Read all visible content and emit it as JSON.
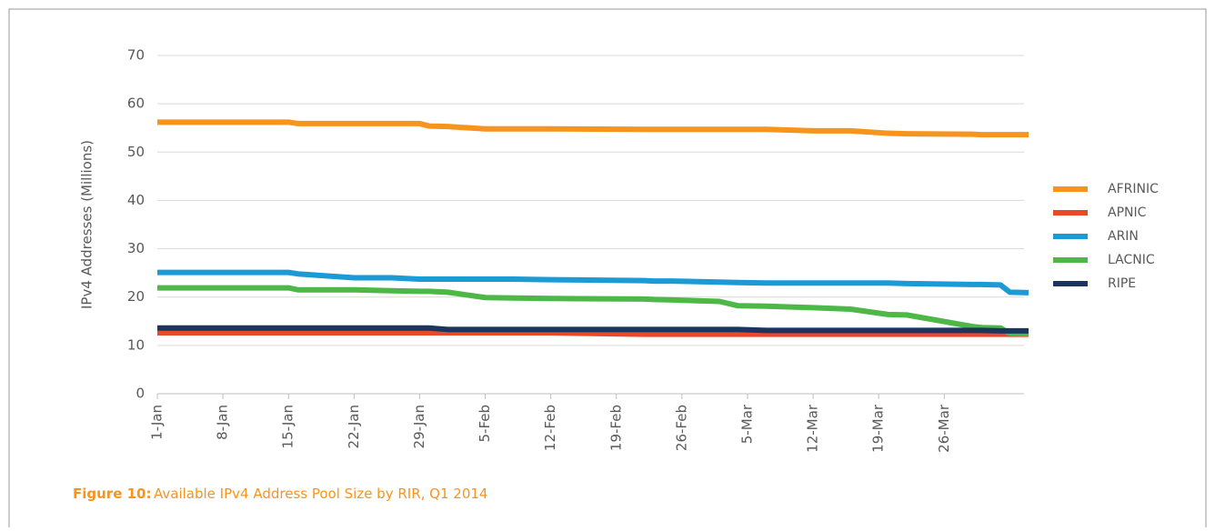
{
  "chart_data": {
    "type": "line",
    "y_label": "IPv4 Addresses (Millions)",
    "caption_label": "Figure 10:",
    "caption": "Available IPv4 Address Pool Size by RIR, Q1 2014",
    "x": [
      0,
      14,
      15,
      21,
      25,
      28,
      29,
      31,
      35,
      38,
      42,
      52,
      53,
      55,
      60,
      62,
      65,
      70,
      74,
      78,
      80,
      87,
      88,
      90,
      91,
      93
    ],
    "xlim": [
      0,
      93
    ],
    "xticks": [
      {
        "value": 0,
        "label": "1-Jan"
      },
      {
        "value": 7,
        "label": "8-Jan"
      },
      {
        "value": 14,
        "label": "15-Jan"
      },
      {
        "value": 21,
        "label": "22-Jan"
      },
      {
        "value": 28,
        "label": "29-Jan"
      },
      {
        "value": 35,
        "label": "5-Feb"
      },
      {
        "value": 42,
        "label": "12-Feb"
      },
      {
        "value": 49,
        "label": "19-Feb"
      },
      {
        "value": 56,
        "label": "26-Feb"
      },
      {
        "value": 63,
        "label": "5-Mar"
      },
      {
        "value": 70,
        "label": "12-Mar"
      },
      {
        "value": 77,
        "label": "19-Mar"
      },
      {
        "value": 84,
        "label": "26-Mar"
      }
    ],
    "ylim": [
      0,
      70
    ],
    "yticks": [
      0,
      10,
      20,
      30,
      40,
      50,
      60,
      70
    ],
    "grid": true,
    "legend": "right",
    "series": [
      {
        "name": "AFRINIC",
        "color": "#f7941d",
        "values": [
          56.2,
          56.2,
          55.9,
          55.9,
          55.9,
          55.9,
          55.4,
          55.3,
          54.8,
          54.8,
          54.8,
          54.7,
          54.7,
          54.7,
          54.7,
          54.7,
          54.7,
          54.4,
          54.4,
          53.9,
          53.8,
          53.7,
          53.6,
          53.6,
          53.6,
          53.6
        ]
      },
      {
        "name": "APNIC",
        "color": "#e8492a",
        "values": [
          12.6,
          12.6,
          12.6,
          12.6,
          12.6,
          12.6,
          12.6,
          12.6,
          12.6,
          12.6,
          12.6,
          12.3,
          12.3,
          12.3,
          12.3,
          12.3,
          12.3,
          12.3,
          12.3,
          12.3,
          12.3,
          12.3,
          12.3,
          12.3,
          12.3,
          12.3
        ]
      },
      {
        "name": "ARIN",
        "color": "#1b9ad6",
        "values": [
          25.1,
          25.1,
          24.8,
          24.0,
          24.0,
          23.7,
          23.7,
          23.7,
          23.7,
          23.7,
          23.6,
          23.4,
          23.3,
          23.3,
          23.1,
          23.0,
          22.9,
          22.9,
          22.9,
          22.9,
          22.8,
          22.6,
          22.6,
          22.5,
          21.0,
          20.9
        ]
      },
      {
        "name": "LACNIC",
        "color": "#4db848",
        "values": [
          21.9,
          21.9,
          21.5,
          21.5,
          21.3,
          21.2,
          21.2,
          21.0,
          19.9,
          19.8,
          19.7,
          19.6,
          19.5,
          19.4,
          19.1,
          18.2,
          18.1,
          17.8,
          17.5,
          16.4,
          16.3,
          13.9,
          13.7,
          13.6,
          12.5,
          12.4
        ]
      },
      {
        "name": "RIPE",
        "color": "#1b355e",
        "values": [
          13.6,
          13.6,
          13.6,
          13.6,
          13.6,
          13.6,
          13.6,
          13.3,
          13.3,
          13.3,
          13.3,
          13.3,
          13.3,
          13.3,
          13.3,
          13.3,
          13.1,
          13.1,
          13.1,
          13.1,
          13.1,
          13.1,
          13.1,
          13.0,
          13.0,
          13.0
        ]
      }
    ]
  }
}
